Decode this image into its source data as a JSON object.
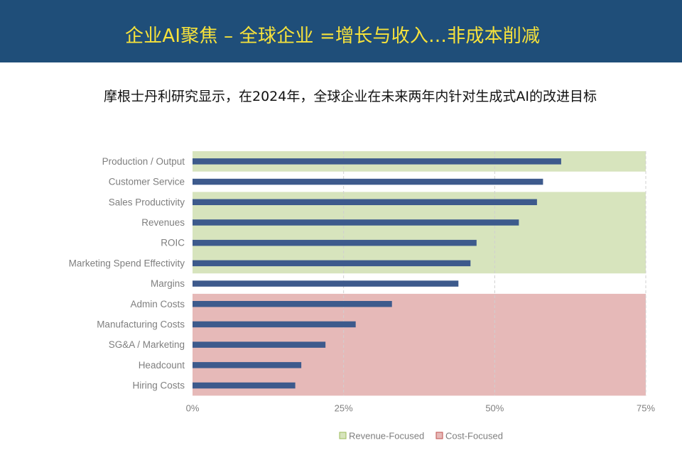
{
  "header": {
    "title": "企业AI聚焦 – 全球企业 =增长与收入…非成本削减",
    "background": "#1f4e79",
    "title_color": "#f7e23b"
  },
  "subtitle": "摩根士丹利研究显示，在2024年，全球企业在未来两年内针对生成式AI的改进目标",
  "colors": {
    "bar": "#3d5a8c",
    "revenue_band": "#d7e4bd",
    "cost_band": "#e6b9b8",
    "grid": "#d9d9d9"
  },
  "chart_data": {
    "type": "bar",
    "orientation": "horizontal",
    "title": "",
    "categories": [
      "Production / Output",
      "Customer Service",
      "Sales Productivity",
      "Revenues",
      "ROIC",
      "Marketing Spend Effectivity",
      "Margins",
      "Admin Costs",
      "Manufacturing Costs",
      "SG&A / Marketing",
      "Headcount",
      "Hiring Costs"
    ],
    "values": [
      61,
      58,
      57,
      54,
      47,
      46,
      44,
      33,
      27,
      22,
      18,
      17
    ],
    "category_group": [
      "revenue",
      "none",
      "revenue",
      "revenue",
      "revenue",
      "revenue",
      "none",
      "cost",
      "cost",
      "cost",
      "cost",
      "cost"
    ],
    "xlim": [
      0,
      75
    ],
    "xticks": [
      0,
      25,
      50,
      75
    ],
    "xtick_labels": [
      "0%",
      "25%",
      "50%",
      "75%"
    ],
    "xlabel": "",
    "ylabel": "",
    "grid": "vertical dashed",
    "legend": {
      "position": "bottom",
      "items": [
        {
          "label": "Revenue-Focused",
          "color": "#d7e4bd",
          "border": "#9bbb59"
        },
        {
          "label": "Cost-Focused",
          "color": "#e6b9b8",
          "border": "#c0504d"
        }
      ]
    }
  }
}
